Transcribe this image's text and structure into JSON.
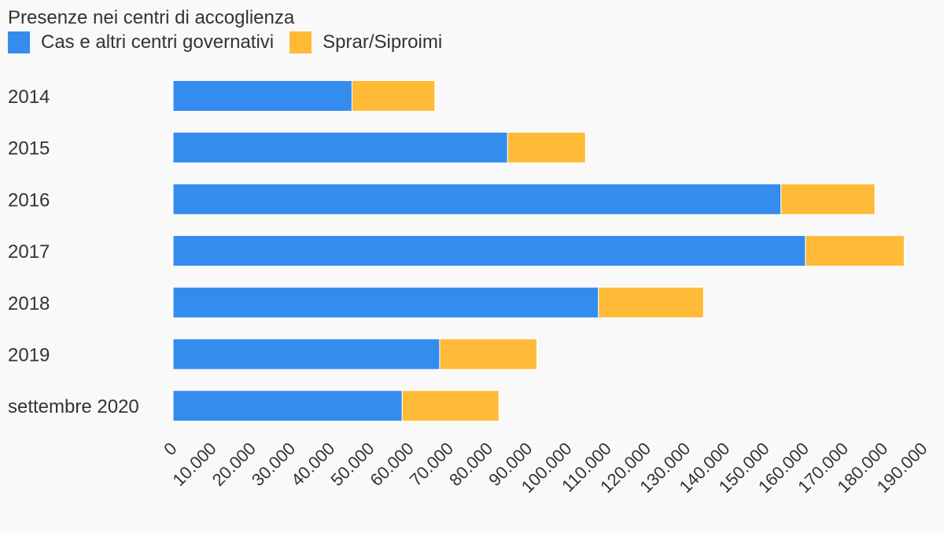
{
  "chart_data": {
    "type": "bar",
    "orientation": "horizontal",
    "stacked": true,
    "title": "Presenze nei centri di accoglienza",
    "categories": [
      "2014",
      "2015",
      "2016",
      "2017",
      "2018",
      "2019",
      "settembre 2020"
    ],
    "series": [
      {
        "name": "Cas e altri centri governativi",
        "color": "#338cee",
        "values": [
          45300,
          84700,
          153900,
          160100,
          107700,
          67500,
          58000
        ]
      },
      {
        "name": "Sprar/Siproimi",
        "color": "#ffba38",
        "values": [
          21000,
          19700,
          23800,
          25000,
          26600,
          24600,
          24500
        ]
      }
    ],
    "xlim": [
      0,
      190000
    ],
    "xticks": [
      "0",
      "10.000",
      "20.000",
      "30.000",
      "40.000",
      "50.000",
      "60.000",
      "70.000",
      "80.000",
      "90.000",
      "100.000",
      "110.000",
      "120.000",
      "130.000",
      "140.000",
      "150.000",
      "160.000",
      "170.000",
      "180.000",
      "190.000"
    ],
    "xlabel": "",
    "ylabel": "",
    "grid": false,
    "legend_position": "top-left"
  }
}
